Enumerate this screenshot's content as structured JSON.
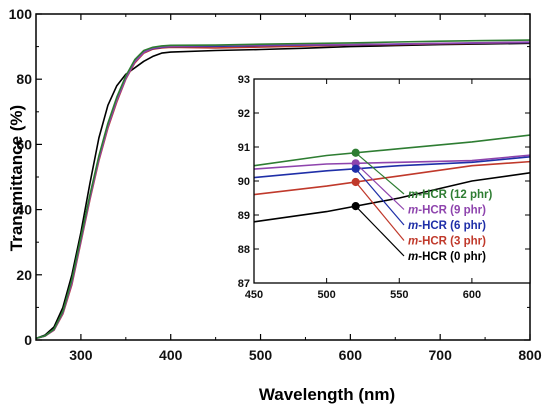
{
  "chart_data": {
    "type": "line",
    "xlabel": "Wavelength (nm)",
    "ylabel": "Transmittance (%)",
    "xlim": [
      250,
      800
    ],
    "ylim": [
      0,
      100
    ],
    "xticks": [
      300,
      400,
      500,
      600,
      700,
      800
    ],
    "yticks": [
      0,
      20,
      40,
      60,
      80,
      100
    ],
    "grid": false,
    "series": [
      {
        "name_prefix": "m",
        "name_suffix": "-HCR (0 phr)",
        "color": "#000000",
        "x": [
          250,
          260,
          270,
          280,
          290,
          300,
          310,
          320,
          330,
          340,
          350,
          360,
          370,
          380,
          390,
          400,
          450,
          500,
          550,
          600,
          650,
          700,
          750,
          800
        ],
        "y": [
          0.5,
          1.5,
          4,
          10,
          20,
          33,
          48,
          62,
          72,
          78,
          81.5,
          83.5,
          85.5,
          87,
          88,
          88.3,
          88.8,
          89.1,
          89.5,
          90.0,
          90.3,
          90.6,
          90.8,
          91.0
        ]
      },
      {
        "name_prefix": "m",
        "name_suffix": "-HCR (3 phr)",
        "color": "#c0392b",
        "x": [
          250,
          260,
          270,
          280,
          290,
          300,
          310,
          320,
          330,
          340,
          350,
          360,
          370,
          380,
          390,
          400,
          450,
          500,
          550,
          600,
          650,
          700,
          750,
          800
        ],
        "y": [
          0.5,
          1.2,
          3,
          8,
          17,
          30,
          43,
          55,
          65,
          73,
          80,
          85,
          88,
          89.2,
          89.6,
          89.8,
          89.6,
          89.85,
          90.15,
          90.45,
          90.6,
          90.85,
          91.05,
          91.2
        ]
      },
      {
        "name_prefix": "m",
        "name_suffix": "-HCR (6 phr)",
        "color": "#1f2fa8",
        "x": [
          250,
          260,
          270,
          280,
          290,
          300,
          310,
          320,
          330,
          340,
          350,
          360,
          370,
          380,
          390,
          400,
          450,
          500,
          550,
          600,
          650,
          700,
          750,
          800
        ],
        "y": [
          0.5,
          1.3,
          3.2,
          8.5,
          18,
          31,
          44,
          56,
          66,
          74,
          80.5,
          85.5,
          88.3,
          89.4,
          89.8,
          90.0,
          90.1,
          90.3,
          90.45,
          90.55,
          90.75,
          90.95,
          91.1,
          91.3
        ]
      },
      {
        "name_prefix": "m",
        "name_suffix": "-HCR (9 phr)",
        "color": "#8e44ad",
        "x": [
          250,
          260,
          270,
          280,
          290,
          300,
          310,
          320,
          330,
          340,
          350,
          360,
          370,
          380,
          390,
          400,
          450,
          500,
          550,
          600,
          650,
          700,
          750,
          800
        ],
        "y": [
          0.5,
          1.2,
          3.1,
          8.3,
          17.5,
          30.5,
          43.5,
          55.5,
          65.5,
          73.5,
          80.2,
          85.3,
          88.2,
          89.5,
          89.9,
          90.1,
          90.35,
          90.5,
          90.55,
          90.6,
          90.8,
          91.0,
          91.2,
          91.4
        ]
      },
      {
        "name_prefix": "m",
        "name_suffix": "-HCR (12 phr)",
        "color": "#2e7d32",
        "x": [
          250,
          260,
          270,
          280,
          290,
          300,
          310,
          320,
          330,
          340,
          350,
          360,
          370,
          380,
          390,
          400,
          450,
          500,
          550,
          600,
          650,
          700,
          750,
          800
        ],
        "y": [
          0.5,
          1.3,
          3.3,
          8.8,
          18.5,
          31.5,
          44.5,
          56.5,
          66.5,
          74.5,
          81,
          86,
          88.8,
          89.8,
          90.2,
          90.4,
          90.45,
          90.75,
          90.95,
          91.15,
          91.4,
          91.65,
          91.85,
          92.0
        ]
      }
    ],
    "inset": {
      "xlim": [
        450,
        640
      ],
      "ylim": [
        87,
        93
      ],
      "xticks": [
        450,
        500,
        550,
        600
      ],
      "yticks": [
        87,
        88,
        89,
        90,
        91,
        92,
        93
      ],
      "marker_x": 520
    }
  }
}
